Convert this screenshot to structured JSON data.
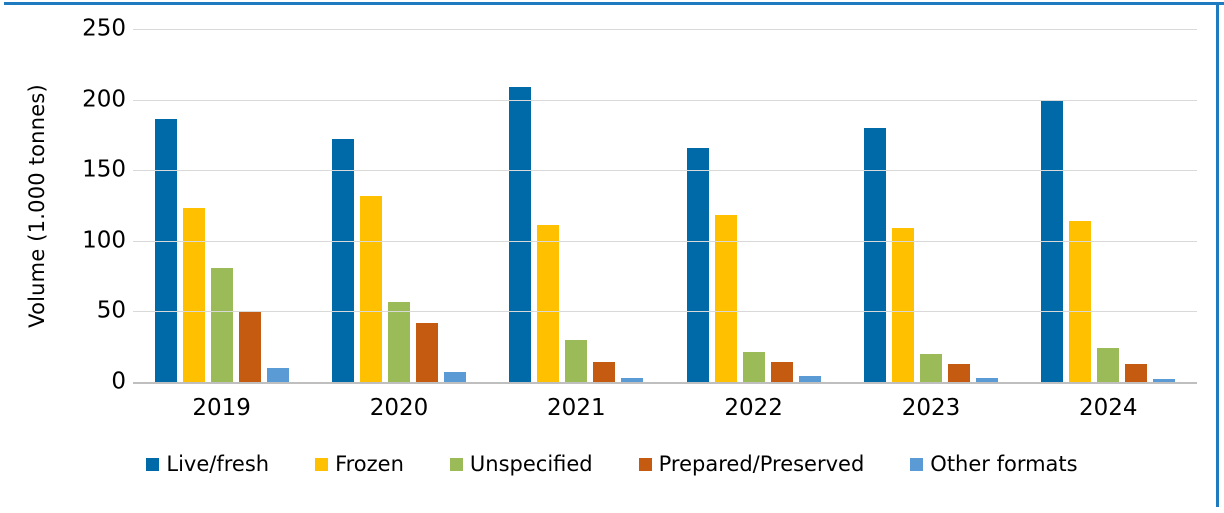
{
  "frame": {
    "border_color": "#1F7BBF"
  },
  "axis_colors": {
    "gridline": "#D9D9D9",
    "axis_line": "#BFBFBF"
  },
  "chart_data": {
    "type": "bar",
    "title": "",
    "xlabel": "",
    "ylabel": "Volume (1.000 tonnes)",
    "ylim": [
      0,
      250
    ],
    "yticks": [
      0,
      50,
      100,
      150,
      200,
      250
    ],
    "grid": true,
    "legend_position": "bottom",
    "categories": [
      "2019",
      "2020",
      "2021",
      "2022",
      "2023",
      "2024"
    ],
    "series": [
      {
        "name": "Live/fresh",
        "color": "#0069A8",
        "values": [
          186,
          172,
          209,
          166,
          180,
          199
        ]
      },
      {
        "name": "Frozen",
        "color": "#FFC000",
        "values": [
          123,
          132,
          111,
          118,
          109,
          114
        ]
      },
      {
        "name": "Unspecified",
        "color": "#9BBB59",
        "values": [
          81,
          57,
          30,
          21,
          20,
          24
        ]
      },
      {
        "name": "Prepared/Preserved",
        "color": "#C55A11",
        "values": [
          50,
          42,
          14,
          14,
          13,
          13
        ]
      },
      {
        "name": "Other formats",
        "color": "#5B9BD5",
        "values": [
          10,
          7,
          3,
          4,
          3,
          2
        ]
      }
    ]
  }
}
